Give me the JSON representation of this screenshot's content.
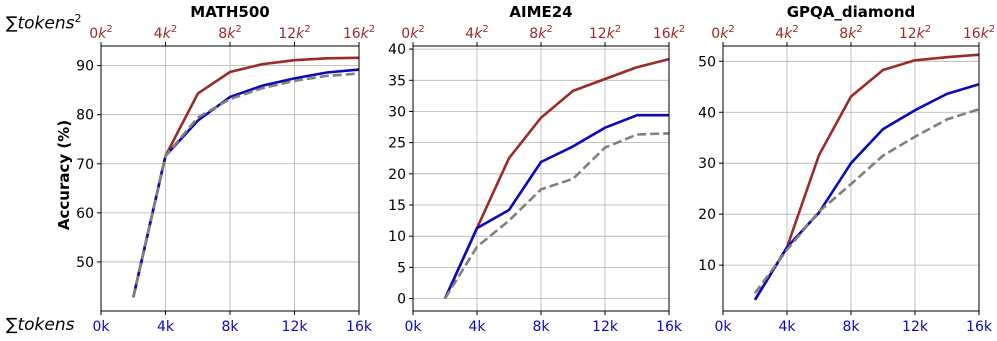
{
  "figure": {
    "top_axis_label_prefix": "∑",
    "top_axis_label_text": "tokens",
    "top_axis_label_sup": "2",
    "bottom_axis_label_prefix": "∑",
    "bottom_axis_label_text": "tokens",
    "ylabel": "Accuracy (%)",
    "colors": {
      "red": "#9b2b2b",
      "blue": "#0a0ab8",
      "gray": "#808080",
      "top_tick": "#9b2b2b",
      "bottom_tick": "#0a0ab8"
    }
  },
  "chart_data": [
    {
      "type": "line",
      "title": "MATH500",
      "xlabel": "∑tokens",
      "ylabel": "Accuracy (%)",
      "x_ticks": [
        "0k",
        "4k",
        "8k",
        "12k",
        "16k"
      ],
      "x2_ticks": [
        "0k²",
        "4k²",
        "8k²",
        "12k²",
        "16k²"
      ],
      "y_ticks": [
        "50",
        "60",
        "70",
        "80",
        "90"
      ],
      "xlim": [
        0,
        16
      ],
      "ylim": [
        40,
        94
      ],
      "grid": true,
      "series": [
        {
          "color": "#9b2b2b",
          "style": "solid",
          "x": [
            2,
            4,
            6,
            8,
            10,
            12,
            14,
            16
          ],
          "y": [
            42.8,
            71.6,
            84.3,
            88.7,
            90.3,
            91.1,
            91.5,
            91.6
          ]
        },
        {
          "color": "#0a0ab8",
          "style": "solid",
          "x": [
            2,
            4,
            6,
            8,
            10,
            12,
            14,
            16
          ],
          "y": [
            42.8,
            71.6,
            78.8,
            83.6,
            85.9,
            87.4,
            88.6,
            89.2
          ]
        },
        {
          "color": "#808080",
          "style": "dashed",
          "x": [
            2,
            4,
            6,
            8,
            10,
            12,
            14,
            16
          ],
          "y": [
            42.8,
            71.6,
            79.4,
            83.2,
            85.4,
            86.9,
            87.9,
            88.4
          ]
        }
      ]
    },
    {
      "type": "line",
      "title": "AIME24",
      "xlabel": "∑tokens",
      "ylabel": "",
      "x_ticks": [
        "0k",
        "4k",
        "8k",
        "12k",
        "16k"
      ],
      "x2_ticks": [
        "0k²",
        "4k²",
        "8k²",
        "12k²",
        "16k²"
      ],
      "y_ticks": [
        "0",
        "5",
        "10",
        "15",
        "20",
        "25",
        "30",
        "35",
        "40"
      ],
      "xlim": [
        0,
        16
      ],
      "ylim": [
        -2,
        40.5
      ],
      "grid": true,
      "series": [
        {
          "color": "#9b2b2b",
          "style": "solid",
          "x": [
            2,
            4,
            6,
            8,
            10,
            12,
            14,
            16
          ],
          "y": [
            0,
            11.3,
            22.5,
            29.0,
            33.3,
            35.2,
            37.1,
            38.4
          ]
        },
        {
          "color": "#0a0ab8",
          "style": "solid",
          "x": [
            2,
            4,
            6,
            8,
            10,
            12,
            14,
            16
          ],
          "y": [
            0,
            11.3,
            14.2,
            21.9,
            24.4,
            27.4,
            29.4,
            29.4
          ]
        },
        {
          "color": "#808080",
          "style": "dashed",
          "x": [
            2,
            4,
            6,
            8,
            10,
            12,
            14,
            16
          ],
          "y": [
            0,
            8.3,
            12.5,
            17.5,
            19.2,
            24.2,
            26.3,
            26.5
          ]
        }
      ]
    },
    {
      "type": "line",
      "title": "GPQA_diamond",
      "xlabel": "∑tokens",
      "ylabel": "",
      "x_ticks": [
        "0k",
        "4k",
        "8k",
        "12k",
        "16k"
      ],
      "x2_ticks": [
        "0k²",
        "4k²",
        "8k²",
        "12k²",
        "16k²"
      ],
      "y_ticks": [
        "10",
        "20",
        "30",
        "40",
        "50"
      ],
      "xlim": [
        0,
        16
      ],
      "ylim": [
        1,
        53
      ],
      "grid": true,
      "series": [
        {
          "color": "#9b2b2b",
          "style": "solid",
          "x": [
            2,
            4,
            6,
            8,
            10,
            12,
            14,
            16
          ],
          "y": [
            3.2,
            13.5,
            31.6,
            43.1,
            48.3,
            50.2,
            50.8,
            51.3
          ]
        },
        {
          "color": "#0a0ab8",
          "style": "solid",
          "x": [
            2,
            4,
            6,
            8,
            10,
            12,
            14,
            16
          ],
          "y": [
            3.2,
            13.5,
            20.3,
            30.0,
            36.7,
            40.4,
            43.6,
            45.5
          ]
        },
        {
          "color": "#808080",
          "style": "dashed",
          "x": [
            2,
            4,
            6,
            8,
            10,
            12,
            14,
            16
          ],
          "y": [
            4.5,
            13.0,
            20.5,
            25.9,
            31.5,
            35.2,
            38.6,
            40.6
          ]
        }
      ]
    }
  ]
}
